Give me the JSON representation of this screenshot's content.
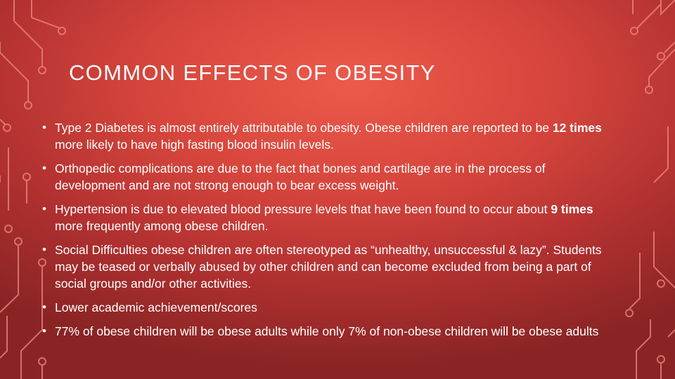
{
  "slide": {
    "title": "COMMON EFFECTS OF OBESITY",
    "bullet_glyph": "•",
    "bullets": [
      {
        "pre": "Type 2 Diabetes is almost entirely attributable to obesity. Obese children are reported to be ",
        "bold": "12 times",
        "post": " more likely to have high fasting blood insulin levels."
      },
      {
        "text": "Orthopedic complications are due to the fact that bones and cartilage are in the process of development and are not strong enough to bear excess weight."
      },
      {
        "pre": "Hypertension is due to elevated blood pressure levels that have been found to occur about ",
        "bold": "9 times",
        "post": " more frequently among obese children."
      },
      {
        "text": "Social Difficulties obese children are often stereotyped as “unhealthy, unsuccessful & lazy”. Students may be teased or verbally abused by other children and can become excluded from being a part of social groups and/or other activities."
      },
      {
        "text": "Lower academic achievement/scores"
      },
      {
        "text": "77% of obese children will be obese adults while only 7% of non-obese children will be obese adults"
      }
    ]
  },
  "colors": {
    "background_center": "#ec5a4c",
    "background_edge": "#8a2424",
    "circuit_line": "#f08a80",
    "text": "#ffffff"
  }
}
